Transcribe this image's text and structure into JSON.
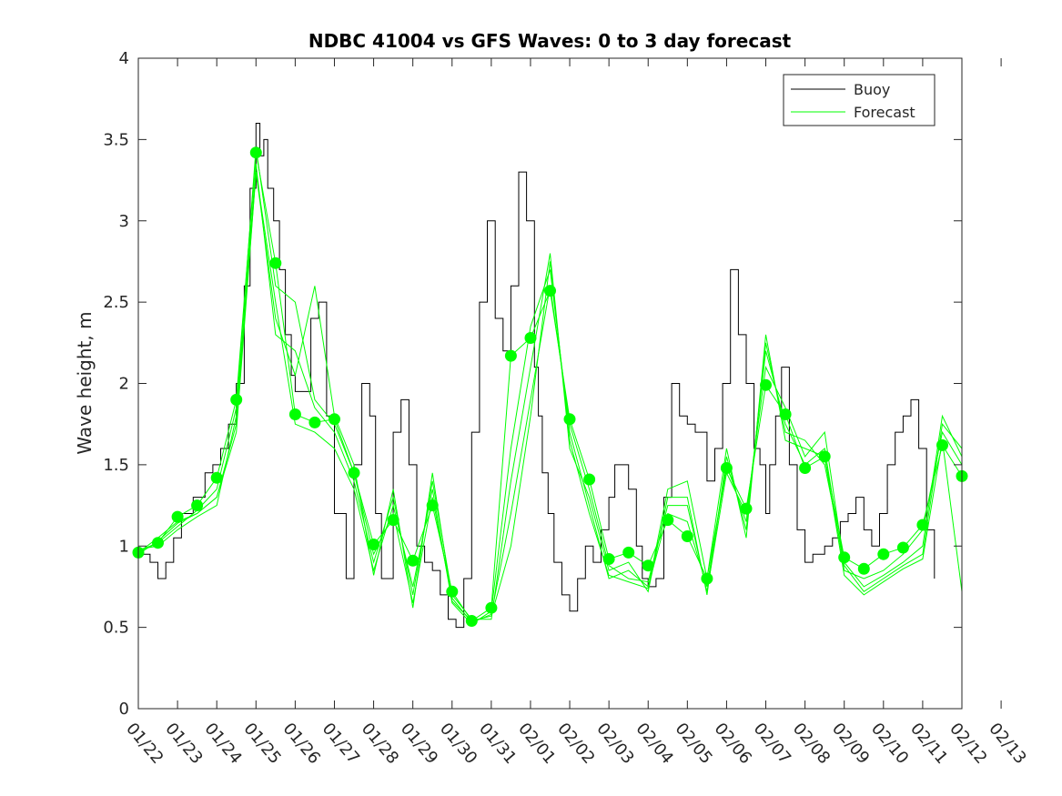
{
  "chart_data": {
    "type": "line",
    "title": "NDBC 41004 vs GFS Waves: 0 to 3 day forecast",
    "xlabel": "",
    "ylabel": "Wave height, m",
    "ylim": [
      0,
      4
    ],
    "xlim": [
      0,
      21
    ],
    "yticks": [
      0,
      0.5,
      1,
      1.5,
      2,
      2.5,
      3,
      3.5,
      4
    ],
    "ytick_labels": [
      "0",
      "0.5",
      "1",
      "1.5",
      "2",
      "2.5",
      "3",
      "3.5",
      "4"
    ],
    "xtick_labels": [
      "01/22",
      "01/23",
      "01/24",
      "01/25",
      "01/26",
      "01/27",
      "01/28",
      "01/29",
      "01/30",
      "01/31",
      "02/01",
      "02/02",
      "02/03",
      "02/04",
      "02/05",
      "02/06",
      "02/07",
      "02/08",
      "02/09",
      "02/10",
      "02/11",
      "02/12",
      "02/13"
    ],
    "legend": {
      "position": "top-right",
      "entries": [
        {
          "label": "Buoy",
          "color": "#000000"
        },
        {
          "label": "Forecast",
          "color": "#00ff00"
        }
      ]
    },
    "buoy": {
      "name": "Buoy",
      "color": "#000000",
      "x": [
        0,
        0.3,
        0.5,
        0.7,
        0.9,
        1.1,
        1.4,
        1.7,
        1.9,
        2.1,
        2.3,
        2.5,
        2.7,
        2.85,
        3.0,
        3.1,
        3.2,
        3.3,
        3.45,
        3.6,
        3.75,
        3.9,
        4.0,
        4.2,
        4.4,
        4.6,
        4.8,
        5.0,
        5.3,
        5.5,
        5.7,
        5.9,
        6.05,
        6.2,
        6.5,
        6.7,
        6.9,
        7.1,
        7.3,
        7.5,
        7.7,
        7.9,
        8.1,
        8.3,
        8.5,
        8.7,
        8.9,
        9.1,
        9.3,
        9.5,
        9.7,
        9.9,
        10.1,
        10.2,
        10.3,
        10.45,
        10.6,
        10.8,
        11.0,
        11.2,
        11.4,
        11.6,
        11.8,
        12.0,
        12.15,
        12.3,
        12.5,
        12.7,
        12.85,
        13.0,
        13.2,
        13.4,
        13.6,
        13.8,
        14.0,
        14.2,
        14.5,
        14.7,
        14.9,
        15.1,
        15.3,
        15.5,
        15.7,
        15.85,
        16.0,
        16.1,
        16.25,
        16.4,
        16.6,
        16.8,
        17.0,
        17.2,
        17.5,
        17.7,
        17.9,
        18.1,
        18.3,
        18.5,
        18.7,
        18.9,
        19.1,
        19.3,
        19.5,
        19.7,
        19.9,
        20.1,
        20.3
      ],
      "values": [
        0.95,
        0.9,
        0.8,
        0.9,
        1.05,
        1.2,
        1.3,
        1.45,
        1.5,
        1.6,
        1.75,
        2.0,
        2.6,
        3.2,
        3.6,
        3.4,
        3.5,
        3.2,
        3.0,
        2.7,
        2.3,
        2.05,
        1.95,
        1.95,
        2.4,
        2.5,
        1.8,
        1.2,
        0.8,
        1.5,
        2.0,
        1.8,
        1.2,
        0.8,
        1.7,
        1.9,
        1.5,
        1.0,
        0.9,
        0.85,
        0.7,
        0.55,
        0.5,
        0.8,
        1.7,
        2.5,
        3.0,
        2.4,
        2.2,
        2.6,
        3.3,
        3.0,
        2.1,
        1.8,
        1.45,
        1.2,
        0.9,
        0.7,
        0.6,
        0.8,
        1.0,
        0.9,
        1.1,
        1.3,
        1.5,
        1.5,
        1.35,
        1.0,
        0.8,
        0.75,
        0.8,
        1.3,
        2.0,
        1.8,
        1.75,
        1.7,
        1.4,
        1.6,
        2.0,
        2.7,
        2.3,
        2.0,
        1.6,
        1.5,
        1.2,
        1.5,
        1.8,
        2.1,
        1.5,
        1.1,
        0.9,
        0.95,
        1.0,
        1.05,
        1.15,
        1.2,
        1.3,
        1.1,
        1.0,
        1.2,
        1.5,
        1.7,
        1.8,
        1.9,
        1.6,
        1.1,
        0.8
      ]
    },
    "forecast_series": [
      {
        "name": "Forecast",
        "x": [
          0,
          0.5,
          1.0,
          1.5,
          2.0,
          2.5,
          3.0,
          3.5,
          4.0,
          4.5,
          5.0,
          5.5,
          6.0,
          6.5,
          7.0,
          7.5,
          8.0,
          8.5,
          9.0,
          9.5,
          10.0,
          10.5,
          11.0,
          11.5,
          12.0,
          12.5,
          13.0,
          13.5,
          14.0,
          14.5,
          15.0,
          15.5,
          16.0,
          16.5,
          17.0,
          17.5,
          18.0,
          18.5,
          19.0,
          19.5,
          20.0,
          20.5,
          21.0
        ],
        "values": [
          0.96,
          1.02,
          1.18,
          1.25,
          1.42,
          1.9,
          3.42,
          2.74,
          1.81,
          1.76,
          1.78,
          1.45,
          1.01,
          1.16,
          0.91,
          1.25,
          0.72,
          0.54,
          0.62,
          2.17,
          2.28,
          2.57,
          1.78,
          1.41,
          0.92,
          0.96,
          0.88,
          1.16,
          1.06,
          0.8,
          1.48,
          1.23,
          1.99,
          1.81,
          1.48,
          1.55,
          0.93,
          0.86,
          0.95,
          0.99,
          1.13,
          1.62,
          1.43
        ]
      },
      {
        "name": "Forecast",
        "x": [
          0,
          0.5,
          1.0,
          1.5,
          2.0,
          2.5,
          3.0,
          3.5,
          4.0,
          4.5,
          5.0,
          5.5,
          6.0,
          6.5,
          7.0,
          7.5,
          8.0,
          8.5,
          9.0,
          9.5,
          10.0,
          10.5,
          11.0,
          11.5,
          12.0,
          12.5,
          13.0,
          13.5,
          14.0,
          14.5,
          15.0,
          15.5,
          16.0,
          16.5,
          17.0,
          17.5,
          18.0,
          18.5,
          19.0,
          19.5,
          20.0,
          20.5,
          21.0
        ],
        "values": [
          0.96,
          1.05,
          1.15,
          1.2,
          1.3,
          1.7,
          3.3,
          2.5,
          1.75,
          1.7,
          1.6,
          1.35,
          0.85,
          1.25,
          0.75,
          1.35,
          0.65,
          0.52,
          0.6,
          1.6,
          2.35,
          2.7,
          1.7,
          1.25,
          0.8,
          0.85,
          0.75,
          1.2,
          1.15,
          0.75,
          1.5,
          1.15,
          2.2,
          1.75,
          1.5,
          1.6,
          0.85,
          0.8,
          0.85,
          0.95,
          1.1,
          1.7,
          1.5
        ]
      },
      {
        "name": "Forecast",
        "x": [
          0,
          0.5,
          1.0,
          1.5,
          2.0,
          2.5,
          3.0,
          3.5,
          4.0,
          4.5,
          5.0,
          5.5,
          6.0,
          6.5,
          7.0,
          7.5,
          8.0,
          8.5,
          9.0,
          9.5,
          10.0,
          10.5,
          11.0,
          11.5,
          12.0,
          12.5,
          13.0,
          13.5,
          14.0,
          14.5,
          15.0,
          15.5,
          16.0,
          16.5,
          17.0,
          17.5,
          18.0,
          18.5,
          19.0,
          19.5,
          20.0,
          20.5,
          21.0
        ],
        "values": [
          0.98,
          1.0,
          1.1,
          1.18,
          1.25,
          1.8,
          3.35,
          2.3,
          2.2,
          1.85,
          1.7,
          1.4,
          0.9,
          1.3,
          0.7,
          1.4,
          0.7,
          0.55,
          0.55,
          1.4,
          2.1,
          2.8,
          1.6,
          1.3,
          0.85,
          0.9,
          0.72,
          1.3,
          1.3,
          0.7,
          1.55,
          1.1,
          2.25,
          1.7,
          1.65,
          1.5,
          0.9,
          0.75,
          0.82,
          0.9,
          1.0,
          1.8,
          1.55
        ]
      },
      {
        "name": "Forecast",
        "x": [
          0,
          0.5,
          1.0,
          1.5,
          2.0,
          2.5,
          3.0,
          3.5,
          4.0,
          4.5,
          5.0,
          5.5,
          6.0,
          6.5,
          7.0,
          7.5,
          8.0,
          8.5,
          9.0,
          9.5,
          10.0,
          10.5,
          11.0,
          11.5,
          12.0,
          12.5,
          13.0,
          13.5,
          14.0,
          14.5,
          15.0,
          15.5,
          16.0,
          16.5,
          17.0,
          17.5,
          18.0,
          18.5,
          19.0,
          19.5,
          20.0,
          20.5,
          21.0
        ],
        "values": [
          0.97,
          1.02,
          1.12,
          1.22,
          1.35,
          1.85,
          3.45,
          2.6,
          2.5,
          1.9,
          1.75,
          1.45,
          0.95,
          1.2,
          0.65,
          1.3,
          0.68,
          0.53,
          0.58,
          1.2,
          1.9,
          2.6,
          1.75,
          1.35,
          0.88,
          0.8,
          0.78,
          1.25,
          1.25,
          0.72,
          1.45,
          1.2,
          2.1,
          1.85,
          1.55,
          1.7,
          0.88,
          0.72,
          0.8,
          0.88,
          0.95,
          1.75,
          1.6
        ]
      },
      {
        "name": "Forecast",
        "x": [
          0,
          0.5,
          1.0,
          1.5,
          2.0,
          2.5,
          3.0,
          3.5,
          4.0,
          4.5,
          5.0,
          5.5,
          6.0,
          6.5,
          7.0,
          7.5,
          8.0,
          8.5,
          9.0,
          9.5,
          10.0,
          10.5,
          11.0,
          11.5,
          12.0,
          12.5,
          13.0,
          13.5,
          14.0,
          14.5,
          15.0,
          15.5,
          16.0,
          16.5,
          17.0,
          17.5,
          18.0,
          18.5,
          19.0,
          19.5,
          20.0,
          20.5,
          21.0
        ],
        "values": [
          0.95,
          1.03,
          1.14,
          1.2,
          1.3,
          1.75,
          3.3,
          2.4,
          2.05,
          2.6,
          1.8,
          1.5,
          0.82,
          1.35,
          0.62,
          1.45,
          0.66,
          0.54,
          0.57,
          1.0,
          1.8,
          2.75,
          1.65,
          1.2,
          0.82,
          0.78,
          0.74,
          1.35,
          1.4,
          0.8,
          1.6,
          1.05,
          2.3,
          1.65,
          1.6,
          1.55,
          0.82,
          0.7,
          0.78,
          0.86,
          0.92,
          1.65,
          0.72
        ]
      }
    ]
  }
}
